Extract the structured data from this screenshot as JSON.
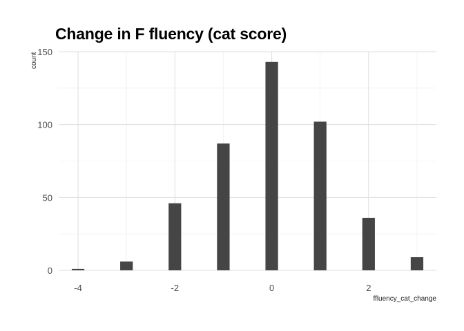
{
  "chart_data": {
    "type": "bar",
    "title": "Change in F fluency (cat score)",
    "xlabel": "ffluency_cat_change",
    "ylabel": "count",
    "x": [
      -4,
      -3,
      -2,
      -1,
      0,
      1,
      2,
      3
    ],
    "values": [
      1,
      6,
      46,
      87,
      143,
      102,
      36,
      9
    ],
    "xlim": [
      -4.4,
      3.4
    ],
    "ylim": [
      0,
      150
    ],
    "x_ticks": [
      -4,
      -2,
      0,
      2
    ],
    "y_ticks": [
      0,
      50,
      100,
      150
    ],
    "bar_color": "#454545",
    "grid": true
  }
}
